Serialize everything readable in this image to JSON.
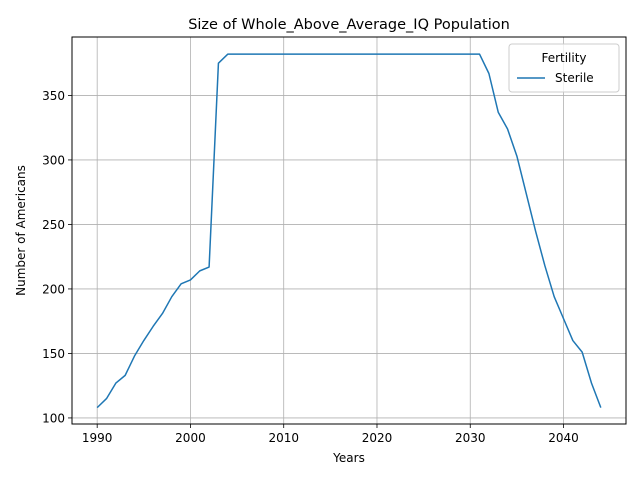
{
  "chart_data": {
    "type": "line",
    "title": "Size of Whole_Above_Average_IQ Population",
    "xlabel": "Years",
    "ylabel": "Number of Americans",
    "xlim": [
      1987.3,
      2046.7
    ],
    "ylim": [
      95.3,
      395.3
    ],
    "xticks": [
      1990,
      2000,
      2010,
      2020,
      2030,
      2040
    ],
    "yticks": [
      100,
      150,
      200,
      250,
      300,
      350
    ],
    "grid": true,
    "legend": {
      "title": "Fertility",
      "placement": "top-right"
    },
    "series": [
      {
        "name": "Sterile",
        "color": "#1f77b4",
        "x": [
          1990,
          1991,
          1992,
          1993,
          1994,
          1995,
          1996,
          1997,
          1998,
          1999,
          2000,
          2001,
          2002,
          2003,
          2004,
          2005,
          2006,
          2007,
          2008,
          2009,
          2010,
          2011,
          2012,
          2013,
          2014,
          2015,
          2016,
          2017,
          2018,
          2019,
          2020,
          2021,
          2022,
          2023,
          2024,
          2025,
          2026,
          2027,
          2028,
          2029,
          2030,
          2031,
          2032,
          2033,
          2034,
          2035,
          2036,
          2037,
          2038,
          2039,
          2040,
          2041,
          2042,
          2043,
          2044
        ],
        "y": [
          108,
          115,
          127,
          133,
          148,
          160,
          171,
          181,
          194,
          204,
          207,
          214,
          217,
          375,
          382,
          382,
          382,
          382,
          382,
          382,
          382,
          382,
          382,
          382,
          382,
          382,
          382,
          382,
          382,
          382,
          382,
          382,
          382,
          382,
          382,
          382,
          382,
          382,
          382,
          382,
          382,
          382,
          367,
          337,
          324,
          303,
          274,
          245,
          218,
          194,
          177,
          160,
          151,
          127,
          108
        ]
      }
    ]
  }
}
